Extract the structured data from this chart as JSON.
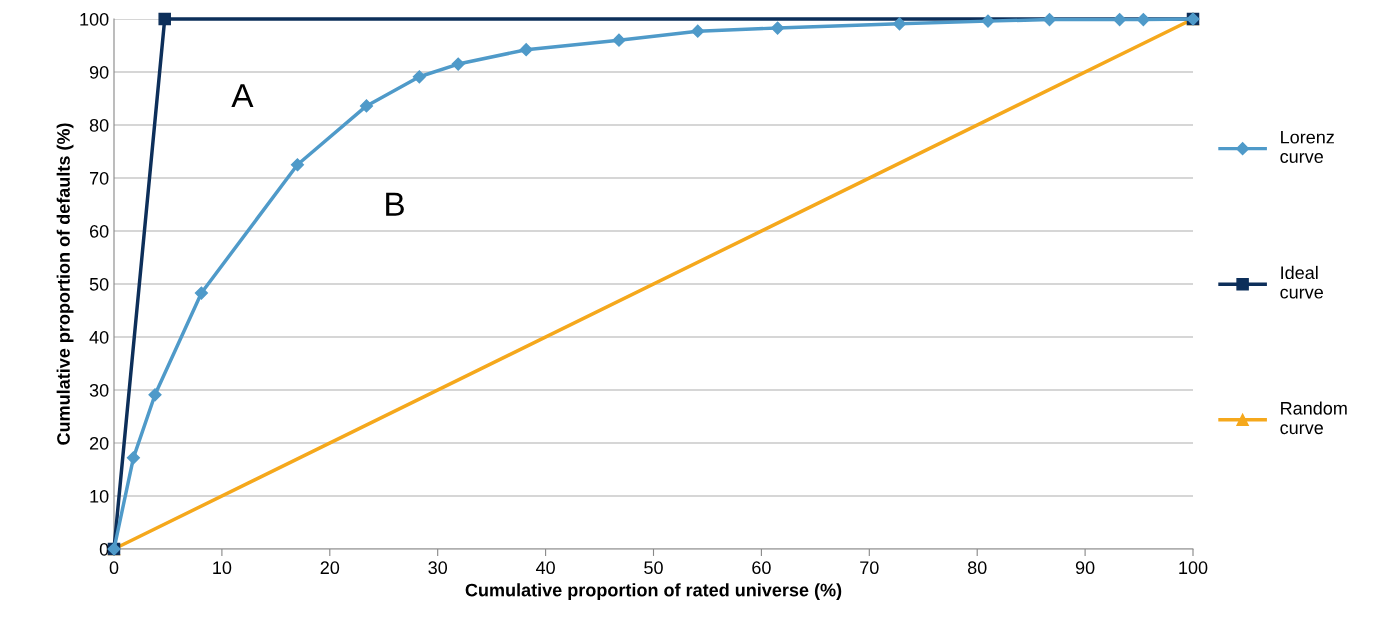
{
  "chart_data": {
    "type": "line",
    "xlabel": "Cumulative proportion of rated universe (%)",
    "ylabel": "Cumulative proportion of defaults (%)",
    "xlim": [
      0,
      100
    ],
    "ylim": [
      0,
      100
    ],
    "xticks": [
      0,
      10,
      20,
      30,
      40,
      50,
      60,
      70,
      80,
      90,
      100
    ],
    "yticks": [
      0,
      10,
      20,
      30,
      40,
      50,
      60,
      70,
      80,
      90,
      100
    ],
    "grid": "y",
    "legend": "right",
    "series": [
      {
        "name": "Lorenz\ncurve",
        "color": "#4f9ac9",
        "marker": "diamond",
        "x": [
          0,
          1.8,
          3.8,
          8.1,
          17.0,
          23.4,
          28.3,
          31.9,
          38.2,
          46.8,
          54.1,
          61.5,
          72.8,
          81.0,
          86.7,
          93.2,
          95.4,
          100
        ],
        "values": [
          0,
          17.2,
          29.1,
          48.3,
          72.5,
          83.6,
          89.1,
          91.5,
          94.2,
          96.0,
          97.7,
          98.3,
          99.1,
          99.6,
          99.9,
          99.9,
          99.9,
          100
        ]
      },
      {
        "name": "Ideal\ncurve",
        "color": "#0d2f5a",
        "marker": "square",
        "x": [
          0,
          4.7,
          100
        ],
        "values": [
          0,
          100,
          100
        ]
      },
      {
        "name": "Random\ncurve",
        "color": "#f5a81c",
        "marker": "triangle",
        "x": [
          0,
          100
        ],
        "values": [
          0,
          100
        ]
      }
    ],
    "annotations": [
      "A",
      "B"
    ]
  }
}
